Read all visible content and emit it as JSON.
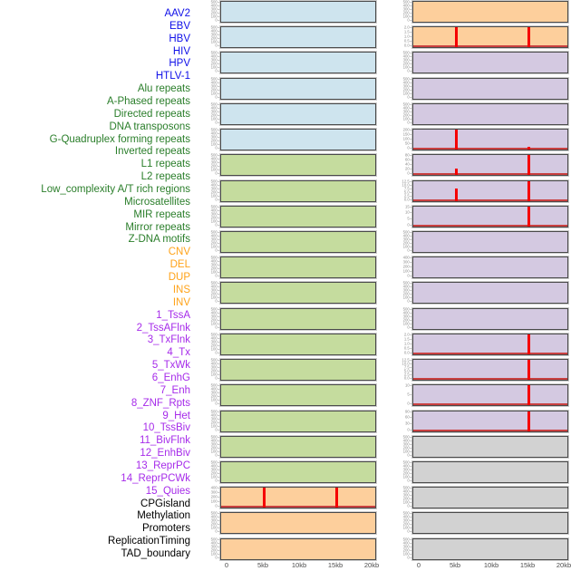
{
  "colors": {
    "label": {
      "virus": "#0f0fe8",
      "repeat": "#2a7e2a",
      "variant": "#ffa319",
      "chromatin": "#a62bea",
      "annotation": "#000000"
    },
    "panel": {
      "virus": "#cee4ee",
      "repeat": "#c5dc9e",
      "variant": "#fdcf9c",
      "chromatin": "#d4c9e1",
      "annotation": "#d2d2d2"
    },
    "spike": "#f50000",
    "baseline": "#c94040",
    "tick_text": "#8c8c8c",
    "axis_text": "#4d4d4d",
    "panel_border": "#4a4a4a"
  },
  "chart_data": {
    "type": "bar",
    "title": "",
    "xlabel": "",
    "ylabel": "",
    "layout": "44 genomic feature tracks faceted as 2 columns x 22 rows of mini-panels; track name list at left; red bars mark feature density peaks at 5kb and 15kb breakpoints",
    "x_range_kb": [
      0,
      20
    ],
    "x_ticks": [
      "0",
      "5kb",
      "10kb",
      "15kb",
      "20kb"
    ],
    "x_tick_kb": [
      0,
      5,
      10,
      15,
      20
    ],
    "grid": false,
    "legend": false,
    "tracks": [
      {
        "label": "AAV2",
        "group": "virus",
        "column": "left",
        "row": 1,
        "y_ticks": [
          "500",
          "400",
          "300",
          "200",
          "100",
          "0"
        ],
        "spikes": [],
        "baseline": false
      },
      {
        "label": "EBV",
        "group": "virus",
        "column": "left",
        "row": 2,
        "y_ticks": [
          "500",
          "400",
          "300",
          "200",
          "100",
          "0"
        ],
        "spikes": [],
        "baseline": false
      },
      {
        "label": "HBV",
        "group": "virus",
        "column": "left",
        "row": 3,
        "y_ticks": [
          "500",
          "400",
          "300",
          "200",
          "100",
          "0"
        ],
        "spikes": [],
        "baseline": false
      },
      {
        "label": "HIV",
        "group": "virus",
        "column": "left",
        "row": 4,
        "y_ticks": [
          "500",
          "400",
          "300",
          "200",
          "100",
          "0"
        ],
        "spikes": [],
        "baseline": false
      },
      {
        "label": "HPV",
        "group": "virus",
        "column": "left",
        "row": 5,
        "y_ticks": [
          "500",
          "400",
          "300",
          "200",
          "100",
          "0"
        ],
        "spikes": [],
        "baseline": false
      },
      {
        "label": "HTLV-1",
        "group": "virus",
        "column": "left",
        "row": 6,
        "y_ticks": [
          "500",
          "400",
          "300",
          "200",
          "100",
          "0"
        ],
        "spikes": [],
        "baseline": false
      },
      {
        "label": "Alu repeats",
        "group": "repeat",
        "column": "left",
        "row": 7,
        "y_ticks": [
          "500",
          "400",
          "300",
          "200",
          "100",
          "0"
        ],
        "spikes": [],
        "baseline": false
      },
      {
        "label": "A-Phased repeats",
        "group": "repeat",
        "column": "left",
        "row": 8,
        "y_ticks": [
          "500",
          "400",
          "300",
          "200",
          "100",
          "0"
        ],
        "spikes": [],
        "baseline": false
      },
      {
        "label": "Directed repeats",
        "group": "repeat",
        "column": "left",
        "row": 9,
        "y_ticks": [
          "500",
          "400",
          "300",
          "200",
          "100",
          "0"
        ],
        "spikes": [],
        "baseline": false
      },
      {
        "label": "DNA transposons",
        "group": "repeat",
        "column": "left",
        "row": 10,
        "y_ticks": [
          "500",
          "400",
          "300",
          "200",
          "100",
          "0"
        ],
        "spikes": [],
        "baseline": false
      },
      {
        "label": "G-Quadruplex forming repeats",
        "group": "repeat",
        "column": "left",
        "row": 11,
        "y_ticks": [
          "500",
          "400",
          "300",
          "200",
          "100",
          "0"
        ],
        "spikes": [],
        "baseline": false
      },
      {
        "label": "Inverted repeats",
        "group": "repeat",
        "column": "left",
        "row": 12,
        "y_ticks": [
          "500",
          "400",
          "300",
          "200",
          "100",
          "0"
        ],
        "spikes": [],
        "baseline": false
      },
      {
        "label": "L1 repeats",
        "group": "repeat",
        "column": "left",
        "row": 13,
        "y_ticks": [
          "500",
          "400",
          "300",
          "200",
          "100",
          "0"
        ],
        "spikes": [],
        "baseline": false
      },
      {
        "label": "L2 repeats",
        "group": "repeat",
        "column": "left",
        "row": 14,
        "y_ticks": [
          "500",
          "400",
          "300",
          "200",
          "100",
          "0"
        ],
        "spikes": [],
        "baseline": false
      },
      {
        "label": "Low_complexity A/T rich regions",
        "group": "repeat",
        "column": "left",
        "row": 15,
        "y_ticks": [
          "500",
          "400",
          "300",
          "200",
          "100",
          "0"
        ],
        "spikes": [],
        "baseline": false
      },
      {
        "label": "Microsatellites",
        "group": "repeat",
        "column": "left",
        "row": 16,
        "y_ticks": [
          "500",
          "400",
          "300",
          "200",
          "100",
          "0"
        ],
        "spikes": [],
        "baseline": false
      },
      {
        "label": "MIR repeats",
        "group": "repeat",
        "column": "left",
        "row": 17,
        "y_ticks": [
          "500",
          "400",
          "300",
          "200",
          "100",
          "0"
        ],
        "spikes": [],
        "baseline": false
      },
      {
        "label": "Mirror repeats",
        "group": "repeat",
        "column": "left",
        "row": 18,
        "y_ticks": [
          "500",
          "400",
          "300",
          "200",
          "100",
          "0"
        ],
        "spikes": [],
        "baseline": false
      },
      {
        "label": "Z-DNA motifs",
        "group": "repeat",
        "column": "left",
        "row": 19,
        "y_ticks": [
          "500",
          "400",
          "300",
          "200",
          "100",
          "0"
        ],
        "spikes": [],
        "baseline": false
      },
      {
        "label": "CNV",
        "group": "variant",
        "column": "left",
        "row": 20,
        "y_ticks": [
          "400",
          "300",
          "200",
          "100",
          "0"
        ],
        "spikes": [
          {
            "x_kb": 5,
            "height_frac": 1.0
          },
          {
            "x_kb": 15,
            "height_frac": 1.0
          }
        ],
        "baseline": true
      },
      {
        "label": "DEL",
        "group": "variant",
        "column": "left",
        "row": 21,
        "y_ticks": [
          "500",
          "400",
          "300",
          "200",
          "100",
          "0"
        ],
        "spikes": [],
        "baseline": false
      },
      {
        "label": "DUP",
        "group": "variant",
        "column": "left",
        "row": 22,
        "y_ticks": [
          "500",
          "400",
          "300",
          "200",
          "100",
          "0"
        ],
        "spikes": [],
        "baseline": false
      },
      {
        "label": "INS",
        "group": "variant",
        "column": "right",
        "row": 1,
        "y_ticks": [
          "500",
          "400",
          "300",
          "200",
          "100",
          "0"
        ],
        "spikes": [],
        "baseline": false
      },
      {
        "label": "INV",
        "group": "variant",
        "column": "right",
        "row": 2,
        "y_ticks": [
          "2.0",
          "1.5",
          "1.0",
          "0.5",
          "0.0"
        ],
        "spikes": [
          {
            "x_kb": 5,
            "height_frac": 1.0
          },
          {
            "x_kb": 15,
            "height_frac": 1.0
          }
        ],
        "baseline": true
      },
      {
        "label": "1_TssA",
        "group": "chromatin",
        "column": "right",
        "row": 3,
        "y_ticks": [
          "500",
          "400",
          "300",
          "200",
          "100",
          "0"
        ],
        "spikes": [],
        "baseline": false
      },
      {
        "label": "2_TssAFlnk",
        "group": "chromatin",
        "column": "right",
        "row": 4,
        "y_ticks": [
          "500",
          "400",
          "300",
          "200",
          "100",
          "0"
        ],
        "spikes": [],
        "baseline": false
      },
      {
        "label": "3_TxFlnk",
        "group": "chromatin",
        "column": "right",
        "row": 5,
        "y_ticks": [
          "500",
          "400",
          "300",
          "200",
          "100",
          "0"
        ],
        "spikes": [],
        "baseline": false
      },
      {
        "label": "4_Tx",
        "group": "chromatin",
        "column": "right",
        "row": 6,
        "y_ticks": [
          "200",
          "150",
          "100",
          "50",
          "0"
        ],
        "spikes": [
          {
            "x_kb": 5,
            "height_frac": 1.0
          },
          {
            "x_kb": 15,
            "height_frac": 0.12
          }
        ],
        "baseline": true
      },
      {
        "label": "5_TxWk",
        "group": "chromatin",
        "column": "right",
        "row": 7,
        "y_ticks": [
          "80",
          "60",
          "40",
          "20",
          "0"
        ],
        "spikes": [
          {
            "x_kb": 5,
            "height_frac": 0.3
          },
          {
            "x_kb": 15,
            "height_frac": 1.0
          }
        ],
        "baseline": true
      },
      {
        "label": "6_EnhG",
        "group": "chromatin",
        "column": "right",
        "row": 8,
        "y_ticks": [
          "12.5",
          "10.0",
          "7.5",
          "5.0",
          "2.5",
          "0.0"
        ],
        "spikes": [
          {
            "x_kb": 5,
            "height_frac": 0.65
          },
          {
            "x_kb": 15,
            "height_frac": 1.0
          }
        ],
        "baseline": true
      },
      {
        "label": "7_Enh",
        "group": "chromatin",
        "column": "right",
        "row": 9,
        "y_ticks": [
          "15",
          "10",
          "5",
          "0"
        ],
        "spikes": [
          {
            "x_kb": 15,
            "height_frac": 1.0
          }
        ],
        "baseline": true
      },
      {
        "label": "8_ZNF_Rpts",
        "group": "chromatin",
        "column": "right",
        "row": 10,
        "y_ticks": [
          "500",
          "400",
          "300",
          "200",
          "100",
          "0"
        ],
        "spikes": [],
        "baseline": false
      },
      {
        "label": "9_Het",
        "group": "chromatin",
        "column": "right",
        "row": 11,
        "y_ticks": [
          "400",
          "300",
          "200",
          "100",
          "0"
        ],
        "spikes": [],
        "baseline": false
      },
      {
        "label": "10_TssBiv",
        "group": "chromatin",
        "column": "right",
        "row": 12,
        "y_ticks": [
          "500",
          "400",
          "300",
          "200",
          "100",
          "0"
        ],
        "spikes": [],
        "baseline": false
      },
      {
        "label": "11_BivFlnk",
        "group": "chromatin",
        "column": "right",
        "row": 13,
        "y_ticks": [
          "500",
          "400",
          "300",
          "200",
          "100",
          "0"
        ],
        "spikes": [],
        "baseline": false
      },
      {
        "label": "12_EnhBiv",
        "group": "chromatin",
        "column": "right",
        "row": 14,
        "y_ticks": [
          "2.0",
          "1.5",
          "1.0",
          "0.5",
          "0.0"
        ],
        "spikes": [
          {
            "x_kb": 15,
            "height_frac": 1.0
          }
        ],
        "baseline": true
      },
      {
        "label": "13_ReprPC",
        "group": "chromatin",
        "column": "right",
        "row": 15,
        "y_ticks": [
          "12.5",
          "10.0",
          "7.5",
          "5.0",
          "2.5",
          "0.0"
        ],
        "spikes": [
          {
            "x_kb": 15,
            "height_frac": 1.0
          }
        ],
        "baseline": true
      },
      {
        "label": "14_ReprPCWk",
        "group": "chromatin",
        "column": "right",
        "row": 16,
        "y_ticks": [
          "10",
          "5",
          "0"
        ],
        "spikes": [
          {
            "x_kb": 15,
            "height_frac": 1.0
          }
        ],
        "baseline": true
      },
      {
        "label": "15_Quies",
        "group": "chromatin",
        "column": "right",
        "row": 17,
        "y_ticks": [
          "90",
          "60",
          "30",
          "0"
        ],
        "spikes": [
          {
            "x_kb": 15,
            "height_frac": 1.0
          }
        ],
        "baseline": true
      },
      {
        "label": "CPGisland",
        "group": "annotation",
        "column": "right",
        "row": 18,
        "y_ticks": [
          "500",
          "400",
          "300",
          "200",
          "100",
          "0"
        ],
        "spikes": [],
        "baseline": false
      },
      {
        "label": "Methylation",
        "group": "annotation",
        "column": "right",
        "row": 19,
        "y_ticks": [
          "500",
          "400",
          "300",
          "200",
          "100",
          "0"
        ],
        "spikes": [],
        "baseline": false
      },
      {
        "label": "Promoters",
        "group": "annotation",
        "column": "right",
        "row": 20,
        "y_ticks": [
          "500",
          "400",
          "300",
          "200",
          "100",
          "0"
        ],
        "spikes": [],
        "baseline": false
      },
      {
        "label": "ReplicationTiming",
        "group": "annotation",
        "column": "right",
        "row": 21,
        "y_ticks": [
          "500",
          "400",
          "300",
          "200",
          "100",
          "0"
        ],
        "spikes": [],
        "baseline": false
      },
      {
        "label": "TAD_boundary",
        "group": "annotation",
        "column": "right",
        "row": 22,
        "y_ticks": [
          "500",
          "400",
          "300",
          "200",
          "100",
          "0"
        ],
        "spikes": [],
        "baseline": false
      }
    ]
  }
}
